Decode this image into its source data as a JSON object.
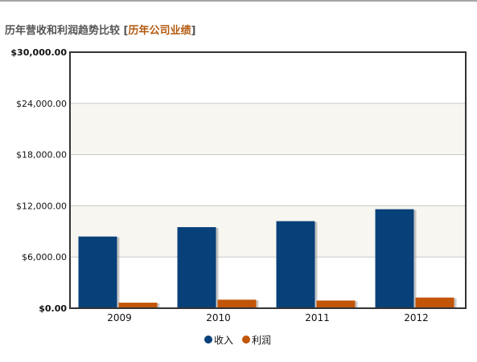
{
  "page": {
    "title": "历年营收和利润趋势比较",
    "link_label": "历年公司业绩",
    "bracket_open": "[",
    "bracket_close": "]"
  },
  "colors": {
    "revenue": "#08417a",
    "profit": "#c25508",
    "band_fill": "#f7f6f1",
    "grid": "#c8c8c8",
    "axis": "#333333",
    "header_link": "#b35a10"
  },
  "chart_data": {
    "type": "bar",
    "categories": [
      "2009",
      "2010",
      "2011",
      "2012"
    ],
    "series": [
      {
        "name": "收入",
        "values": [
          8400,
          9500,
          10200,
          11600
        ]
      },
      {
        "name": "利润",
        "values": [
          650,
          1000,
          900,
          1250
        ]
      }
    ],
    "ylim": [
      0,
      30000
    ],
    "y_ticks": [
      "$0.00",
      "$6,000.00",
      "$12,000.00",
      "$18,000.00",
      "$24,000.00",
      "$30,000.00"
    ],
    "grid": true,
    "legend": "bottom-center",
    "title": "",
    "xlabel": "",
    "ylabel": ""
  }
}
